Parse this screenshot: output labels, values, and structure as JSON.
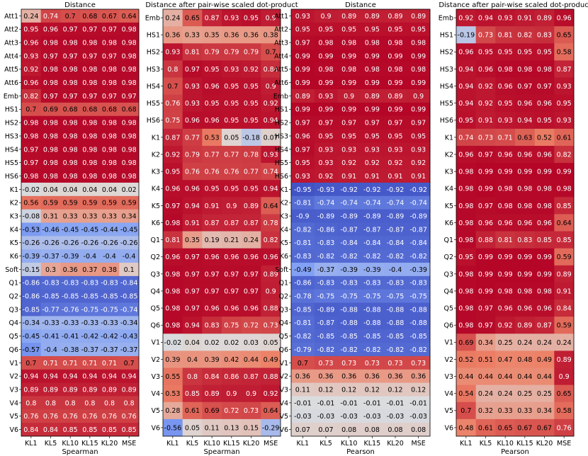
{
  "colors": {
    "neg_strong": "#3b4cc0",
    "neutral": "#dddddd",
    "pos_strong": "#b40426"
  },
  "chart_data": [
    {
      "type": "heatmap",
      "title": "Distance",
      "xlabel": "Spearman",
      "ylabel": "",
      "columns": [
        "KL1",
        "KL5",
        "KL10",
        "KL15",
        "KL20",
        "MSE"
      ],
      "rows": [
        "Att1",
        "Att2",
        "Att3",
        "Att4",
        "Att5",
        "Att6",
        "Emb",
        "HS1",
        "HS2",
        "HS3",
        "HS4",
        "HS5",
        "HS6",
        "K1",
        "K2",
        "K3",
        "K4",
        "K5",
        "K6",
        "Soft",
        "Q1",
        "Q2",
        "Q3",
        "Q4",
        "Q5",
        "Q6",
        "V1",
        "V2",
        "V3",
        "V4",
        "V5",
        "V6"
      ],
      "values": [
        [
          "0.24",
          "0.74",
          "0.7",
          "0.68",
          "0.67",
          "0.64"
        ],
        [
          "0.95",
          "0.96",
          "0.97",
          "0.97",
          "0.97",
          "0.98"
        ],
        [
          "0.96",
          "0.98",
          "0.98",
          "0.98",
          "0.98",
          "0.98"
        ],
        [
          "0.93",
          "0.97",
          "0.97",
          "0.97",
          "0.97",
          "0.98"
        ],
        [
          "0.92",
          "0.98",
          "0.98",
          "0.98",
          "0.98",
          "0.98"
        ],
        [
          "0.96",
          "0.98",
          "0.98",
          "0.98",
          "0.98",
          "0.98"
        ],
        [
          "0.82",
          "0.97",
          "0.97",
          "0.97",
          "0.97",
          "0.97"
        ],
        [
          "0.7",
          "0.69",
          "0.68",
          "0.68",
          "0.68",
          "0.68"
        ],
        [
          "0.98",
          "0.98",
          "0.98",
          "0.98",
          "0.98",
          "0.98"
        ],
        [
          "0.98",
          "0.98",
          "0.98",
          "0.98",
          "0.98",
          "0.98"
        ],
        [
          "0.97",
          "0.98",
          "0.98",
          "0.98",
          "0.98",
          "0.98"
        ],
        [
          "0.97",
          "0.98",
          "0.98",
          "0.98",
          "0.98",
          "0.98"
        ],
        [
          "0.98",
          "0.98",
          "0.98",
          "0.98",
          "0.98",
          "0.98"
        ],
        [
          "-0.02",
          "0.04",
          "0.04",
          "0.04",
          "0.04",
          "0.02"
        ],
        [
          "0.56",
          "0.59",
          "0.59",
          "0.59",
          "0.59",
          "0.59"
        ],
        [
          "-0.08",
          "0.31",
          "0.33",
          "0.33",
          "0.33",
          "0.34"
        ],
        [
          "-0.53",
          "-0.46",
          "-0.45",
          "-0.45",
          "-0.44",
          "-0.45"
        ],
        [
          "-0.26",
          "-0.26",
          "-0.26",
          "-0.26",
          "-0.26",
          "-0.26"
        ],
        [
          "-0.39",
          "-0.37",
          "-0.39",
          "-0.4",
          "-0.4",
          "-0.4"
        ],
        [
          "-0.15",
          "0.3",
          "0.36",
          "0.37",
          "0.38",
          "0.1"
        ],
        [
          "-0.86",
          "-0.83",
          "-0.83",
          "-0.83",
          "-0.83",
          "-0.84"
        ],
        [
          "-0.86",
          "-0.85",
          "-0.85",
          "-0.85",
          "-0.85",
          "-0.85"
        ],
        [
          "-0.85",
          "-0.77",
          "-0.76",
          "-0.75",
          "-0.75",
          "-0.74"
        ],
        [
          "-0.34",
          "-0.33",
          "-0.33",
          "-0.33",
          "-0.33",
          "-0.34"
        ],
        [
          "-0.45",
          "-0.41",
          "-0.41",
          "-0.42",
          "-0.42",
          "-0.43"
        ],
        [
          "-0.57",
          "-0.4",
          "-0.38",
          "-0.37",
          "-0.37",
          "-0.37"
        ],
        [
          "0.7",
          "0.71",
          "0.71",
          "0.71",
          "0.71",
          "0.7"
        ],
        [
          "0.94",
          "0.94",
          "0.94",
          "0.94",
          "0.94",
          "0.94"
        ],
        [
          "0.89",
          "0.89",
          "0.89",
          "0.89",
          "0.89",
          "0.89"
        ],
        [
          "0.8",
          "0.8",
          "0.8",
          "0.8",
          "0.8",
          "0.8"
        ],
        [
          "0.76",
          "0.76",
          "0.76",
          "0.76",
          "0.76",
          "0.76"
        ],
        [
          "0.84",
          "0.84",
          "0.85",
          "0.85",
          "0.85",
          "0.85"
        ]
      ]
    },
    {
      "type": "heatmap",
      "title": "Distance after pair-wise scaled dot-product",
      "xlabel": "Spearman",
      "ylabel": "",
      "columns": [
        "KL1",
        "KL5",
        "KL10",
        "KL15",
        "KL20",
        "MSE"
      ],
      "rows": [
        "Emb",
        "HS1",
        "HS2",
        "HS3",
        "HS4",
        "HS5",
        "HS6",
        "K1",
        "K2",
        "K3",
        "K4",
        "K5",
        "K6",
        "Q1",
        "Q2",
        "Q3",
        "Q4",
        "Q5",
        "Q6",
        "V1",
        "V2",
        "V3",
        "V4",
        "V5",
        "V6"
      ],
      "values": [
        [
          "0.24",
          "0.65",
          "0.87",
          "0.93",
          "0.95",
          "0.9"
        ],
        [
          "0.36",
          "0.33",
          "0.35",
          "0.36",
          "0.36",
          "0.38"
        ],
        [
          "0.93",
          "0.81",
          "0.79",
          "0.79",
          "0.79",
          "0.7"
        ],
        [
          "0.8",
          "0.97",
          "0.95",
          "0.93",
          "0.92",
          "0.84"
        ],
        [
          "0.7",
          "0.93",
          "0.96",
          "0.95",
          "0.95",
          "0.9"
        ],
        [
          "0.76",
          "0.93",
          "0.95",
          "0.95",
          "0.95",
          "0.92"
        ],
        [
          "0.75",
          "0.96",
          "0.96",
          "0.95",
          "0.95",
          "0.94"
        ],
        [
          "0.87",
          "0.77",
          "0.53",
          "0.05",
          "-0.18",
          "0.07"
        ],
        [
          "0.92",
          "0.79",
          "0.77",
          "0.77",
          "0.78",
          "0.93"
        ],
        [
          "0.95",
          "0.76",
          "0.76",
          "0.76",
          "0.77",
          "0.74"
        ],
        [
          "0.96",
          "0.96",
          "0.95",
          "0.95",
          "0.95",
          "0.94"
        ],
        [
          "0.97",
          "0.94",
          "0.91",
          "0.9",
          "0.89",
          "0.64"
        ],
        [
          "0.98",
          "0.91",
          "0.87",
          "0.87",
          "0.87",
          "0.78"
        ],
        [
          "0.81",
          "0.35",
          "0.19",
          "0.21",
          "0.24",
          "0.82"
        ],
        [
          "0.96",
          "0.97",
          "0.96",
          "0.96",
          "0.96",
          "0.96"
        ],
        [
          "0.98",
          "0.97",
          "0.97",
          "0.97",
          "0.97",
          "0.89"
        ],
        [
          "0.98",
          "0.97",
          "0.97",
          "0.97",
          "0.97",
          "0.9"
        ],
        [
          "0.98",
          "0.97",
          "0.96",
          "0.96",
          "0.96",
          "0.88"
        ],
        [
          "0.98",
          "0.94",
          "0.83",
          "0.75",
          "0.72",
          "0.73"
        ],
        [
          "-0.02",
          "0.04",
          "0.02",
          "0.02",
          "0.03",
          "0.05"
        ],
        [
          "0.39",
          "0.4",
          "0.39",
          "0.42",
          "0.44",
          "0.49"
        ],
        [
          "0.55",
          "0.8",
          "0.84",
          "0.86",
          "0.87",
          "0.88"
        ],
        [
          "0.53",
          "0.85",
          "0.89",
          "0.9",
          "0.9",
          "0.92"
        ],
        [
          "0.28",
          "0.61",
          "0.69",
          "0.72",
          "0.73",
          "0.64"
        ],
        [
          "-0.56",
          "0.05",
          "0.11",
          "0.13",
          "0.15",
          "-0.29"
        ]
      ]
    },
    {
      "type": "heatmap",
      "title": "Distance",
      "xlabel": "Pearson",
      "ylabel": "",
      "columns": [
        "KL1",
        "KL5",
        "KL10",
        "KL15",
        "KL20",
        "MSE"
      ],
      "rows": [
        "Att1",
        "Att2",
        "Att3",
        "Att4",
        "Att5",
        "Att6",
        "Emb",
        "HS1",
        "HS2",
        "HS3",
        "HS4",
        "HS5",
        "HS6",
        "K1",
        "K2",
        "K3",
        "K4",
        "K5",
        "K6",
        "Soft",
        "Q1",
        "Q2",
        "Q3",
        "Q4",
        "Q5",
        "Q6",
        "V1",
        "V2",
        "V3",
        "V4",
        "V5",
        "V6"
      ],
      "values": [
        [
          "0.93",
          "0.9",
          "0.89",
          "0.89",
          "0.89",
          "0.89"
        ],
        [
          "0.95",
          "0.95",
          "0.95",
          "0.95",
          "0.95",
          "0.95"
        ],
        [
          "0.97",
          "0.98",
          "0.98",
          "0.98",
          "0.98",
          "0.98"
        ],
        [
          "0.99",
          "0.99",
          "0.99",
          "0.99",
          "0.99",
          "0.99"
        ],
        [
          "0.99",
          "0.98",
          "0.98",
          "0.98",
          "0.98",
          "0.98"
        ],
        [
          "0.99",
          "0.99",
          "0.99",
          "0.99",
          "0.99",
          "0.99"
        ],
        [
          "0.89",
          "0.93",
          "0.9",
          "0.89",
          "0.89",
          "0.9"
        ],
        [
          "0.99",
          "0.99",
          "0.99",
          "0.99",
          "0.99",
          "0.99"
        ],
        [
          "0.97",
          "0.97",
          "0.97",
          "0.97",
          "0.97",
          "0.97"
        ],
        [
          "0.96",
          "0.95",
          "0.95",
          "0.95",
          "0.95",
          "0.95"
        ],
        [
          "0.97",
          "0.93",
          "0.93",
          "0.93",
          "0.93",
          "0.93"
        ],
        [
          "0.95",
          "0.93",
          "0.92",
          "0.92",
          "0.92",
          "0.92"
        ],
        [
          "0.93",
          "0.92",
          "0.91",
          "0.91",
          "0.91",
          "0.91"
        ],
        [
          "-0.95",
          "-0.93",
          "-0.92",
          "-0.92",
          "-0.92",
          "-0.92"
        ],
        [
          "-0.81",
          "-0.74",
          "-0.74",
          "-0.74",
          "-0.74",
          "-0.74"
        ],
        [
          "-0.9",
          "-0.89",
          "-0.89",
          "-0.89",
          "-0.89",
          "-0.89"
        ],
        [
          "-0.82",
          "-0.86",
          "-0.87",
          "-0.87",
          "-0.87",
          "-0.87"
        ],
        [
          "-0.81",
          "-0.83",
          "-0.84",
          "-0.84",
          "-0.84",
          "-0.84"
        ],
        [
          "-0.83",
          "-0.82",
          "-0.82",
          "-0.82",
          "-0.82",
          "-0.82"
        ],
        [
          "-0.49",
          "-0.37",
          "-0.39",
          "-0.39",
          "-0.4",
          "-0.39"
        ],
        [
          "-0.86",
          "-0.83",
          "-0.83",
          "-0.83",
          "-0.83",
          "-0.83"
        ],
        [
          "-0.78",
          "-0.75",
          "-0.75",
          "-0.75",
          "-0.75",
          "-0.75"
        ],
        [
          "-0.85",
          "-0.89",
          "-0.88",
          "-0.88",
          "-0.88",
          "-0.88"
        ],
        [
          "-0.81",
          "-0.87",
          "-0.88",
          "-0.88",
          "-0.88",
          "-0.88"
        ],
        [
          "-0.82",
          "-0.85",
          "-0.85",
          "-0.85",
          "-0.85",
          "-0.85"
        ],
        [
          "-0.79",
          "-0.82",
          "-0.82",
          "-0.82",
          "-0.82",
          "-0.82"
        ],
        [
          "0.7",
          "0.73",
          "0.73",
          "0.73",
          "0.73",
          "0.73"
        ],
        [
          "0.36",
          "0.36",
          "0.36",
          "0.36",
          "0.36",
          "0.36"
        ],
        [
          "0.11",
          "0.12",
          "0.12",
          "0.12",
          "0.12",
          "0.12"
        ],
        [
          "-0.01",
          "-0.01",
          "-0.01",
          "-0.01",
          "-0.01",
          "-0.01"
        ],
        [
          "-0.03",
          "-0.03",
          "-0.03",
          "-0.03",
          "-0.03",
          "-0.03"
        ],
        [
          "0.07",
          "0.07",
          "0.08",
          "0.08",
          "0.08",
          "0.08"
        ]
      ]
    },
    {
      "type": "heatmap",
      "title": "Distance after pair-wise scaled dot-product",
      "xlabel": "Pearson",
      "ylabel": "",
      "columns": [
        "KL1",
        "KL5",
        "KL10",
        "KL15",
        "KL20",
        "MSE"
      ],
      "rows": [
        "Emb",
        "HS1",
        "HS2",
        "HS3",
        "HS4",
        "HS5",
        "HS6",
        "K1",
        "K2",
        "K3",
        "K4",
        "K5",
        "K6",
        "Q1",
        "Q2",
        "Q3",
        "Q4",
        "Q5",
        "Q6",
        "V1",
        "V2",
        "V3",
        "V4",
        "V5",
        "V6"
      ],
      "values": [
        [
          "0.92",
          "0.94",
          "0.93",
          "0.91",
          "0.89",
          "0.96"
        ],
        [
          "-0.19",
          "0.73",
          "0.81",
          "0.82",
          "0.83",
          "0.65"
        ],
        [
          "0.96",
          "0.95",
          "0.95",
          "0.95",
          "0.95",
          "0.58"
        ],
        [
          "0.94",
          "0.96",
          "0.98",
          "0.98",
          "0.98",
          "0.87"
        ],
        [
          "0.94",
          "0.92",
          "0.96",
          "0.97",
          "0.97",
          "0.93"
        ],
        [
          "0.94",
          "0.92",
          "0.95",
          "0.96",
          "0.96",
          "0.95"
        ],
        [
          "0.95",
          "0.91",
          "0.93",
          "0.94",
          "0.95",
          "0.93"
        ],
        [
          "0.74",
          "0.73",
          "0.71",
          "0.63",
          "0.52",
          "0.61"
        ],
        [
          "0.96",
          "0.97",
          "0.96",
          "0.96",
          "0.96",
          "0.82"
        ],
        [
          "0.98",
          "0.99",
          "0.99",
          "0.99",
          "0.99",
          "0.99"
        ],
        [
          "0.98",
          "0.99",
          "0.98",
          "0.98",
          "0.98",
          "0.98"
        ],
        [
          "0.98",
          "0.97",
          "0.98",
          "0.98",
          "0.98",
          "0.85"
        ],
        [
          "0.98",
          "0.96",
          "0.96",
          "0.96",
          "0.96",
          "0.64"
        ],
        [
          "0.98",
          "0.88",
          "0.81",
          "0.83",
          "0.85",
          "0.85"
        ],
        [
          "0.95",
          "0.99",
          "0.99",
          "0.99",
          "0.99",
          "0.59"
        ],
        [
          "0.98",
          "0.99",
          "0.99",
          "0.99",
          "0.99",
          "0.89"
        ],
        [
          "0.98",
          "0.99",
          "0.98",
          "0.98",
          "0.98",
          "0.91"
        ],
        [
          "0.98",
          "0.97",
          "0.96",
          "0.96",
          "0.96",
          "0.84"
        ],
        [
          "0.98",
          "0.97",
          "0.92",
          "0.89",
          "0.87",
          "0.59"
        ],
        [
          "0.69",
          "0.34",
          "0.25",
          "0.24",
          "0.24",
          "0.24"
        ],
        [
          "0.52",
          "0.51",
          "0.47",
          "0.48",
          "0.49",
          "0.89"
        ],
        [
          "0.44",
          "0.44",
          "0.44",
          "0.44",
          "0.44",
          "0.9"
        ],
        [
          "0.54",
          "0.24",
          "0.24",
          "0.25",
          "0.25",
          "0.65"
        ],
        [
          "0.7",
          "0.32",
          "0.33",
          "0.33",
          "0.34",
          "0.58"
        ],
        [
          "0.48",
          "0.61",
          "0.65",
          "0.67",
          "0.67",
          "0.76"
        ]
      ]
    }
  ]
}
